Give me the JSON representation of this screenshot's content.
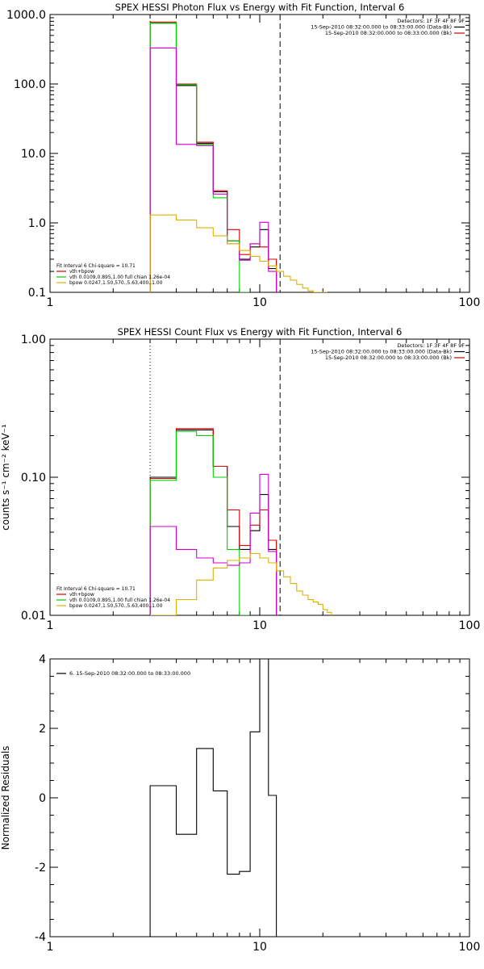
{
  "colors": {
    "black": "#000000",
    "red": "#e00000",
    "green": "#00d000",
    "magenta": "#d000d0",
    "yellow": "#e0b000",
    "white": "#ffffff"
  },
  "chart_data": [
    {
      "type": "line",
      "title": "SPEX HESSI Photon Flux vs Energy with Fit Function, Interval 6",
      "xscale": "log",
      "yscale": "log",
      "xlim": [
        1,
        100
      ],
      "ylim": [
        0.1,
        1000
      ],
      "x_tick_labels": [
        "1",
        "10",
        "100"
      ],
      "y_tick_labels": [
        "0.1",
        "1.0",
        "10.0",
        "100.0",
        "1000.0"
      ],
      "legend_top": [
        "Detectors: 1F 3F 4F 8F 9F",
        "15-Sep-2010 08:32:00.000 to 08:33:00.000 (Data-Bk)",
        "15-Sep-2010 08:32:00.000 to 08:33:00.000 (Bk)"
      ],
      "legend_top_colors": [
        "none",
        "#000000",
        "#e00000"
      ],
      "legend_bottom": [
        "Fit Interval 6   Chi-square = 10.71",
        "vth+bpow",
        "vth 0.0109,0.895,1.00  full chian 1.26e-04",
        "bpow 0.0247,1.50,570.,5.63,400.,1.00"
      ],
      "legend_bottom_colors": [
        "none",
        "#e00000",
        "#00d000",
        "#e0b000"
      ],
      "vlines": [
        3.0,
        12.5
      ],
      "x_edges": [
        3.0,
        4.0,
        5.0,
        6.0,
        7.0,
        8.0,
        9.0,
        10.0,
        11.0,
        12.0,
        13.0,
        14.0,
        15.0,
        16.0,
        17.0,
        18.0,
        19.0,
        20.0,
        21.0
      ],
      "series": [
        {
          "color": "#000000",
          "values": [
            750,
            95,
            14.0,
            2.8,
            0.55,
            0.3,
            0.45,
            0.8,
            0.22
          ]
        },
        {
          "color": "#e00000",
          "values": [
            780,
            100,
            14.5,
            2.9,
            0.8,
            0.35,
            0.5,
            0.45,
            0.3
          ]
        },
        {
          "color": "#00d000",
          "values": [
            760,
            98,
            13.5,
            2.3,
            0.55,
            0.09
          ]
        },
        {
          "color": "#d000d0",
          "values": [
            330,
            13.5,
            13.0,
            2.6,
            0.5,
            0.29,
            0.5,
            1.02,
            0.2
          ]
        },
        {
          "color": "#e0b000",
          "values": [
            1.3,
            1.1,
            0.85,
            0.65,
            0.5,
            0.4,
            0.33,
            0.28,
            0.24,
            0.2,
            0.17,
            0.15,
            0.13,
            0.115,
            0.105,
            0.1,
            0.1,
            0.1
          ]
        }
      ]
    },
    {
      "type": "line",
      "title": "SPEX HESSI Count Flux vs Energy with Fit Function, Interval 6",
      "ylabel": "counts s⁻¹ cm⁻² keV⁻¹",
      "xscale": "log",
      "yscale": "log",
      "xlim": [
        1,
        100
      ],
      "ylim": [
        0.01,
        1.0
      ],
      "x_tick_labels": [
        "1",
        "10",
        "100"
      ],
      "y_tick_labels": [
        "0.01",
        "0.10",
        "1.00"
      ],
      "legend_top": [
        "Detectors: 1F 3F 4F 8F 9F",
        "15-Sep-2010 08:32:00.000 to 08:33:00.000 (Data-Bk)",
        "15-Sep-2010 08:32:00.000 to 08:33:00.000 (Bk)"
      ],
      "legend_top_colors": [
        "none",
        "#000000",
        "#e00000"
      ],
      "legend_bottom": [
        "Fit Interval 6   Chi-square = 10.71",
        "vth+bpow",
        "vth 0.0109,0.895,1.00  full chian 1.26e-04",
        "bpow 0.0247,1.50,570.,5.63,400.,1.00"
      ],
      "legend_bottom_colors": [
        "none",
        "#e00000",
        "#00d000",
        "#e0b000"
      ],
      "vlines": [
        3.0,
        12.5
      ],
      "x_edges": [
        3.0,
        4.0,
        5.0,
        6.0,
        7.0,
        8.0,
        9.0,
        10.0,
        11.0,
        12.0,
        13.0,
        14.0,
        15.0,
        16.0,
        17.0,
        18.0,
        19.0,
        20.0,
        21.0,
        22.0
      ],
      "series": [
        {
          "color": "#000000",
          "values": [
            0.1,
            0.22,
            0.22,
            0.12,
            0.044,
            0.03,
            0.041,
            0.075,
            0.03
          ]
        },
        {
          "color": "#e00000",
          "values": [
            0.098,
            0.225,
            0.225,
            0.12,
            0.058,
            0.032,
            0.045,
            0.058,
            0.035
          ]
        },
        {
          "color": "#00d000",
          "values": [
            0.095,
            0.215,
            0.2,
            0.1,
            0.03,
            0.009
          ]
        },
        {
          "color": "#d000d0",
          "values": [
            0.044,
            0.03,
            0.026,
            0.024,
            0.023,
            0.024,
            0.055,
            0.105,
            0.029
          ]
        },
        {
          "color": "#e0b000",
          "values": [
            0.008,
            0.013,
            0.018,
            0.022,
            0.025,
            0.026,
            0.028,
            0.026,
            0.024,
            0.021,
            0.019,
            0.017,
            0.015,
            0.014,
            0.013,
            0.0125,
            0.012,
            0.011,
            0.0105
          ]
        }
      ]
    },
    {
      "type": "line",
      "ylabel": "Normalized Residuals",
      "xscale": "log",
      "yscale": "linear",
      "xlim": [
        1,
        100
      ],
      "ylim": [
        -4,
        4
      ],
      "x_tick_labels": [
        "1",
        "10",
        "100"
      ],
      "y_tick_labels": [
        "-4",
        "-2",
        "0",
        "2",
        "4"
      ],
      "legend": "6. 15-Sep-2010 08:32:00.000 to 08:33:00.000",
      "x_edges": [
        3.0,
        4.0,
        5.0,
        6.0,
        7.0,
        8.0,
        9.0,
        10.0,
        11.0,
        12.0
      ],
      "series": [
        {
          "color": "#000000",
          "values": [
            0.35,
            -1.05,
            1.42,
            0.2,
            -2.2,
            -2.12,
            1.9,
            4.0,
            0.07
          ]
        }
      ]
    }
  ]
}
